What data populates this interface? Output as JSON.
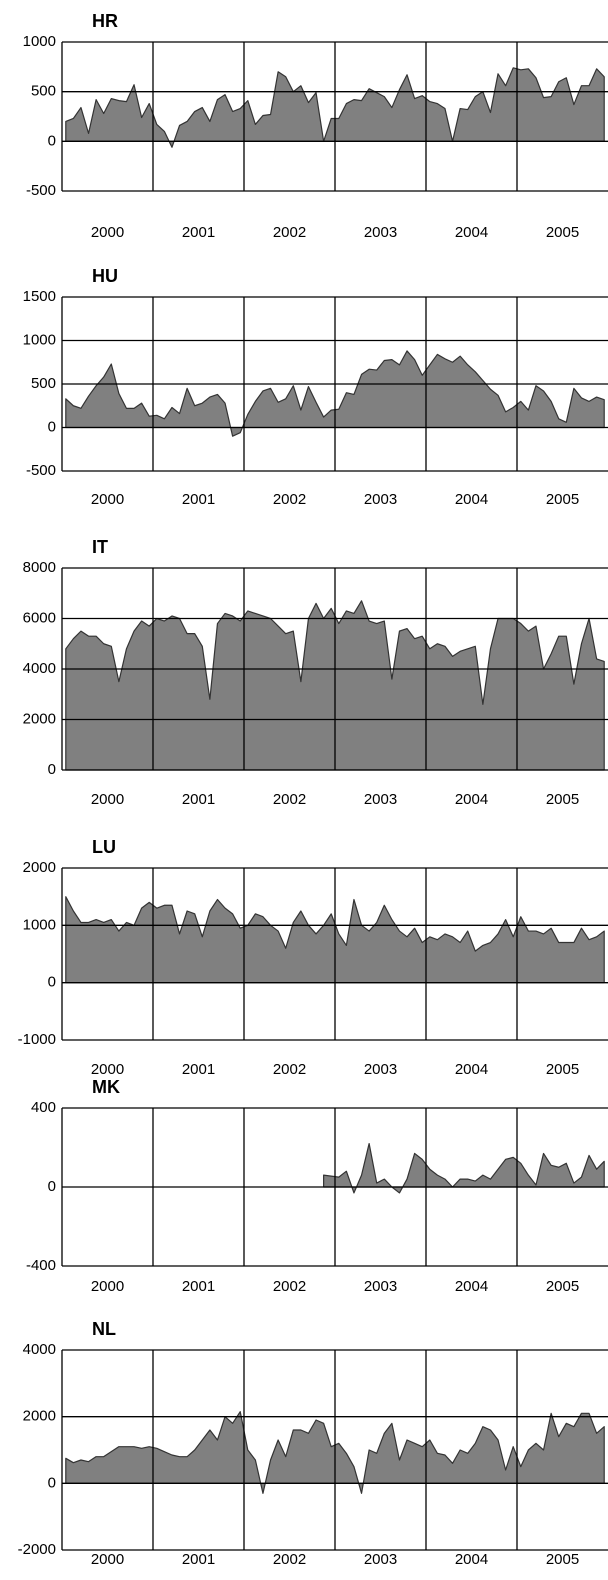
{
  "chart_data": [
    {
      "type": "area",
      "title": "HR",
      "categories": [
        "2000",
        "2001",
        "2002",
        "2003",
        "2004",
        "2005"
      ],
      "color": "#808080",
      "grid": true,
      "ylim": [
        -500,
        1000
      ],
      "yticks": [
        -500,
        0,
        500,
        1000
      ],
      "values": [
        [
          200,
          230,
          340,
          80,
          420,
          280,
          430,
          410,
          400,
          570,
          240,
          380
        ],
        [
          170,
          100,
          -60,
          160,
          200,
          300,
          340,
          200,
          420,
          470,
          300,
          330
        ],
        [
          410,
          170,
          260,
          270,
          700,
          650,
          500,
          560,
          390,
          490,
          0,
          230
        ],
        [
          230,
          380,
          420,
          410,
          530,
          490,
          450,
          340,
          520,
          670,
          430,
          460
        ],
        [
          400,
          380,
          330,
          0,
          330,
          320,
          450,
          500,
          290,
          680,
          560,
          740
        ],
        [
          720,
          730,
          640,
          440,
          450,
          600,
          640,
          370,
          560,
          560,
          730,
          650
        ]
      ]
    },
    {
      "type": "area",
      "title": "HU",
      "categories": [
        "2000",
        "2001",
        "2002",
        "2003",
        "2004",
        "2005"
      ],
      "color": "#808080",
      "grid": true,
      "ylim": [
        -500,
        1500
      ],
      "yticks": [
        -500,
        0,
        500,
        1000,
        1500
      ],
      "values": [
        [
          330,
          250,
          220,
          360,
          480,
          580,
          730,
          390,
          220,
          220,
          280,
          130
        ],
        [
          140,
          100,
          230,
          160,
          450,
          250,
          280,
          350,
          380,
          280,
          -100,
          -60
        ],
        [
          150,
          300,
          420,
          450,
          290,
          330,
          480,
          200,
          470,
          290,
          120,
          200
        ],
        [
          210,
          400,
          380,
          610,
          670,
          660,
          770,
          780,
          720,
          880,
          780,
          600
        ],
        [
          720,
          840,
          790,
          750,
          820,
          720,
          640,
          540,
          440,
          370,
          180,
          230
        ],
        [
          300,
          200,
          480,
          420,
          300,
          100,
          60,
          450,
          340,
          300,
          350,
          320
        ]
      ]
    },
    {
      "type": "area",
      "title": "IT",
      "categories": [
        "2000",
        "2001",
        "2002",
        "2003",
        "2004",
        "2005"
      ],
      "color": "#808080",
      "grid": true,
      "ylim": [
        0,
        8000
      ],
      "yticks": [
        0,
        2000,
        4000,
        6000,
        8000
      ],
      "values": [
        [
          4800,
          5200,
          5500,
          5300,
          5300,
          5000,
          4900,
          3500,
          4800,
          5500,
          5900,
          5700
        ],
        [
          6000,
          5900,
          6100,
          6000,
          5400,
          5400,
          4900,
          2800,
          5800,
          6200,
          6100,
          5900
        ],
        [
          6300,
          6200,
          6100,
          6000,
          5700,
          5400,
          5500,
          3500,
          6000,
          6600,
          6000,
          6400
        ],
        [
          5800,
          6300,
          6200,
          6700,
          5900,
          5800,
          5900,
          3600,
          5500,
          5600,
          5200,
          5300
        ],
        [
          4800,
          5000,
          4900,
          4500,
          4700,
          4800,
          4900,
          2600,
          4800,
          6000,
          6000,
          6000
        ],
        [
          5800,
          5500,
          5700,
          4000,
          4600,
          5300,
          5300,
          3400,
          5000,
          6000,
          4400,
          4300
        ]
      ]
    },
    {
      "type": "area",
      "title": "LU",
      "categories": [
        "2000",
        "2001",
        "2002",
        "2003",
        "2004",
        "2005"
      ],
      "color": "#808080",
      "grid": true,
      "ylim": [
        -1000,
        2000
      ],
      "yticks": [
        -1000,
        0,
        1000,
        2000
      ],
      "values": [
        [
          1500,
          1250,
          1050,
          1050,
          1100,
          1050,
          1100,
          900,
          1050,
          1000,
          1300,
          1400
        ],
        [
          1300,
          1350,
          1350,
          850,
          1250,
          1200,
          800,
          1250,
          1450,
          1300,
          1200,
          950
        ],
        [
          1000,
          1200,
          1150,
          1000,
          900,
          600,
          1050,
          1250,
          1000,
          850,
          1000,
          1200
        ],
        [
          850,
          650,
          1450,
          1000,
          900,
          1050,
          1350,
          1100,
          900,
          800,
          950,
          700
        ],
        [
          800,
          750,
          850,
          800,
          700,
          900,
          550,
          650,
          700,
          850,
          1100,
          800
        ],
        [
          1150,
          900,
          900,
          850,
          950,
          700,
          700,
          700,
          950,
          750,
          800,
          900
        ]
      ]
    },
    {
      "type": "area",
      "title": "MK",
      "categories": [
        "2000",
        "2001",
        "2002",
        "2003",
        "2004",
        "2005"
      ],
      "color": "#808080",
      "grid": true,
      "ylim": [
        -400,
        400
      ],
      "yticks": [
        -400,
        0,
        400
      ],
      "values": [
        [
          null,
          null,
          null,
          null,
          null,
          null,
          null,
          null,
          null,
          null,
          null,
          null
        ],
        [
          null,
          null,
          null,
          null,
          null,
          null,
          null,
          null,
          null,
          null,
          null,
          null
        ],
        [
          null,
          null,
          null,
          null,
          null,
          null,
          null,
          null,
          null,
          null,
          60,
          55
        ],
        [
          50,
          80,
          -30,
          60,
          220,
          20,
          40,
          0,
          -30,
          40,
          170,
          140
        ],
        [
          90,
          60,
          40,
          0,
          40,
          40,
          30,
          60,
          40,
          90,
          140,
          150
        ],
        [
          120,
          60,
          10,
          170,
          110,
          100,
          120,
          20,
          50,
          160,
          90,
          130
        ]
      ]
    },
    {
      "type": "area",
      "title": "NL",
      "categories": [
        "2000",
        "2001",
        "2002",
        "2003",
        "2004",
        "2005"
      ],
      "color": "#808080",
      "grid": true,
      "ylim": [
        -2000,
        4000
      ],
      "yticks": [
        -2000,
        0,
        2000,
        4000
      ],
      "values": [
        [
          750,
          620,
          700,
          650,
          800,
          800,
          950,
          1100,
          1100,
          1100,
          1050,
          1100
        ],
        [
          1050,
          950,
          850,
          800,
          800,
          1000,
          1300,
          1600,
          1300,
          2000,
          1800,
          2150
        ],
        [
          1000,
          700,
          -300,
          700,
          1300,
          800,
          1600,
          1600,
          1500,
          1900,
          1800,
          1100
        ],
        [
          1200,
          900,
          500,
          -300,
          1000,
          900,
          1500,
          1800,
          700,
          1300,
          1200,
          1100
        ],
        [
          1300,
          900,
          850,
          600,
          1000,
          900,
          1200,
          1700,
          1600,
          1300,
          400,
          1100
        ],
        [
          500,
          1000,
          1200,
          1000,
          2100,
          1400,
          1800,
          1700,
          2100,
          2100,
          1500,
          1700
        ]
      ]
    }
  ]
}
